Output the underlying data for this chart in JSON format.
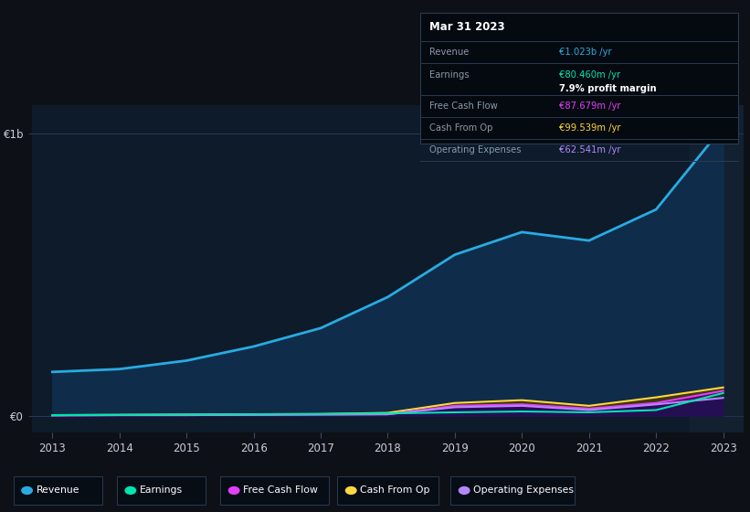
{
  "bg_color": "#0d1117",
  "plot_bg_color": "#0d1b2a",
  "years": [
    2013,
    2014,
    2015,
    2016,
    2017,
    2018,
    2019,
    2020,
    2021,
    2022,
    2023
  ],
  "revenue": [
    155,
    165,
    195,
    245,
    310,
    420,
    570,
    650,
    620,
    730,
    1023
  ],
  "earnings": [
    2,
    3,
    4,
    5,
    6,
    8,
    12,
    15,
    12,
    20,
    80
  ],
  "free_cash_flow": [
    1,
    2,
    2,
    3,
    4,
    5,
    35,
    40,
    25,
    45,
    88
  ],
  "cash_from_op": [
    2,
    3,
    4,
    5,
    6,
    10,
    45,
    55,
    35,
    65,
    100
  ],
  "operating_exp": [
    1,
    2,
    2,
    3,
    4,
    5,
    30,
    35,
    20,
    40,
    63
  ],
  "revenue_color": "#29abe2",
  "earnings_color": "#00e5b0",
  "free_cash_flow_color": "#e040fb",
  "cash_from_op_color": "#ffd740",
  "operating_exp_color": "#b388ff",
  "y_max": 1100,
  "y_min": -60,
  "info_box": {
    "title": "Mar 31 2023",
    "revenue_label": "Revenue",
    "revenue_value": "€1.023b /yr",
    "revenue_color": "#29abe2",
    "earnings_label": "Earnings",
    "earnings_value": "€80.460m /yr",
    "earnings_color": "#00e5b0",
    "margin_text": "7.9% profit margin",
    "free_cash_flow_label": "Free Cash Flow",
    "free_cash_flow_value": "€87.679m /yr",
    "free_cash_flow_color": "#e040fb",
    "cash_from_op_label": "Cash From Op",
    "cash_from_op_value": "€99.539m /yr",
    "cash_from_op_color": "#ffd740",
    "operating_exp_label": "Operating Expenses",
    "operating_exp_value": "€62.541m /yr",
    "operating_exp_color": "#b388ff"
  },
  "legend_items": [
    {
      "label": "Revenue",
      "color": "#29abe2"
    },
    {
      "label": "Earnings",
      "color": "#00e5b0"
    },
    {
      "label": "Free Cash Flow",
      "color": "#e040fb"
    },
    {
      "label": "Cash From Op",
      "color": "#ffd740"
    },
    {
      "label": "Operating Expenses",
      "color": "#b388ff"
    }
  ]
}
